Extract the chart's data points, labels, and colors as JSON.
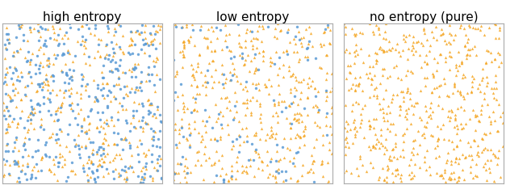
{
  "titles": [
    "high entropy",
    "low entropy",
    "no entropy (pure)"
  ],
  "orange_color": "#f5a623",
  "blue_color": "#5b9bd5",
  "seed": 42,
  "marker_size": 6,
  "alpha": 0.85,
  "title_fontsize": 11,
  "panels": [
    {
      "blue_circles": 400,
      "orange_triangles": 400
    },
    {
      "blue_circles": 100,
      "orange_triangles": 500
    },
    {
      "blue_circles": 0,
      "orange_triangles": 600
    }
  ]
}
